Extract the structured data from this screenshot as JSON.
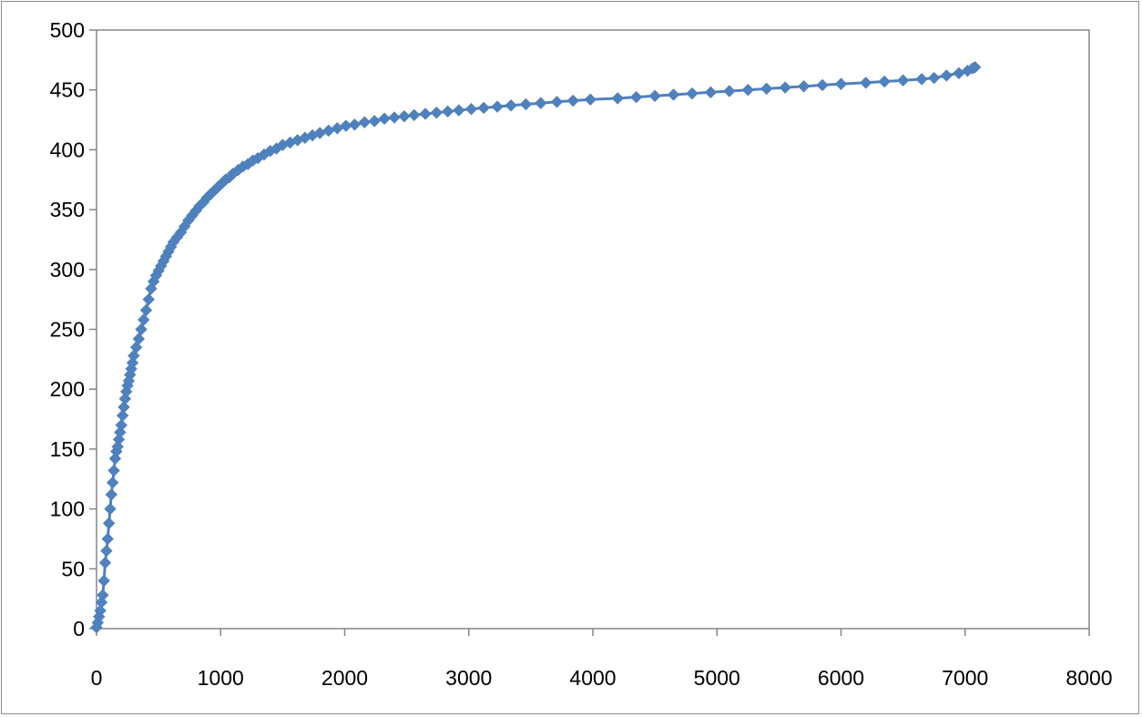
{
  "chart_data": {
    "type": "scatter",
    "title": "",
    "xlabel": "",
    "ylabel": "",
    "xlim": [
      0,
      8000
    ],
    "ylim": [
      0,
      500
    ],
    "grid": false,
    "legend": "none",
    "marker": "diamond",
    "color": "#4f81bd",
    "x_ticks": [
      "0",
      "1000",
      "2000",
      "3000",
      "4000",
      "5000",
      "6000",
      "7000",
      "8000"
    ],
    "y_ticks": [
      "0",
      "50",
      "100",
      "150",
      "200",
      "250",
      "300",
      "350",
      "400",
      "450",
      "500"
    ],
    "series": [
      {
        "x": [
          0,
          10,
          20,
          30,
          40,
          50,
          60,
          70,
          80,
          90,
          100,
          110,
          120,
          130,
          140,
          150,
          160,
          170,
          180,
          190,
          200,
          210,
          220,
          230,
          240,
          250,
          260,
          270,
          280,
          290,
          300,
          320,
          340,
          360,
          380,
          400,
          420,
          440,
          460,
          480,
          500,
          520,
          540,
          560,
          580,
          600,
          620,
          650,
          680,
          710,
          740,
          770,
          800,
          830,
          860,
          890,
          920,
          950,
          980,
          1010,
          1040,
          1070,
          1100,
          1140,
          1180,
          1220,
          1260,
          1300,
          1350,
          1400,
          1450,
          1500,
          1560,
          1620,
          1680,
          1740,
          1800,
          1870,
          1940,
          2010,
          2080,
          2160,
          2240,
          2320,
          2400,
          2480,
          2560,
          2650,
          2740,
          2830,
          2920,
          3020,
          3120,
          3230,
          3340,
          3460,
          3580,
          3710,
          3840,
          3980,
          4200,
          4350,
          4500,
          4650,
          4800,
          4950,
          5100,
          5250,
          5400,
          5550,
          5700,
          5850,
          6000,
          6200,
          6350,
          6500,
          6650,
          6750,
          6850,
          6950,
          7020,
          7060,
          7080
        ],
        "y": [
          1,
          5,
          10,
          15,
          22,
          28,
          40,
          55,
          65,
          75,
          88,
          100,
          112,
          122,
          132,
          142,
          148,
          152,
          158,
          164,
          170,
          178,
          185,
          192,
          198,
          203,
          207,
          212,
          217,
          222,
          228,
          235,
          242,
          250,
          258,
          266,
          275,
          284,
          290,
          295,
          299,
          303,
          307,
          311,
          315,
          319,
          323,
          327,
          331,
          336,
          341,
          345,
          349,
          353,
          356,
          360,
          363,
          366,
          369,
          372,
          375,
          377,
          380,
          383,
          386,
          388,
          391,
          393,
          396,
          399,
          401,
          404,
          406,
          408,
          410,
          412,
          414,
          416,
          418,
          420,
          421,
          423,
          424,
          426,
          427,
          428,
          429,
          430,
          431,
          432,
          433,
          434,
          435,
          436,
          437,
          438,
          439,
          440,
          441,
          442,
          443,
          444,
          445,
          446,
          447,
          448,
          449,
          450,
          451,
          452,
          453,
          454,
          455,
          456,
          457,
          458,
          459,
          460,
          462,
          464,
          466,
          468,
          469
        ]
      }
    ]
  }
}
